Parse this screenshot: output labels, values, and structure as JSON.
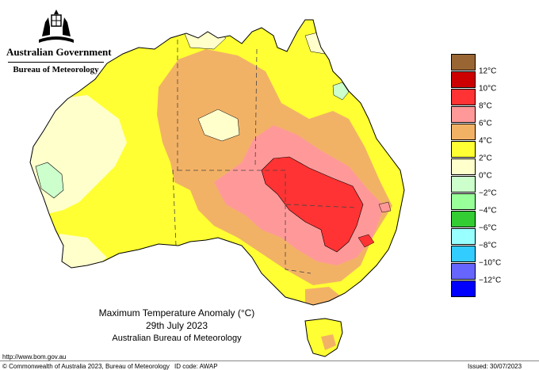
{
  "header": {
    "government": "Australian Government",
    "agency": "Bureau of Meteorology",
    "crest_icon": "coat-of-arms-icon"
  },
  "map": {
    "title": "Maximum Temperature Anomaly (°C)",
    "date": "29th July 2023",
    "source": "Australian Bureau of Meteorology",
    "background_color": "#ffffff",
    "coastline_color": "#000000"
  },
  "legend": {
    "bins": [
      {
        "label": "",
        "color": "#996633"
      },
      {
        "label": "12°C",
        "color": "#cc0000"
      },
      {
        "label": "10°C",
        "color": "#ff3333"
      },
      {
        "label": "8°C",
        "color": "#ff9999"
      },
      {
        "label": "6°C",
        "color": "#f2b266"
      },
      {
        "label": "4°C",
        "color": "#ffff33"
      },
      {
        "label": "2°C",
        "color": "#ffffcc"
      },
      {
        "label": "0°C",
        "color": "#ccffcc"
      },
      {
        "label": "−2°C",
        "color": "#99ff99"
      },
      {
        "label": "−4°C",
        "color": "#33cc33"
      },
      {
        "label": "−6°C",
        "color": "#99ffff"
      },
      {
        "label": "−8°C",
        "color": "#33ccff"
      },
      {
        "label": "−10°C",
        "color": "#6666ff"
      },
      {
        "label": "−12°C",
        "color": "#0000ff"
      }
    ]
  },
  "footer": {
    "url": "http://www.bom.gov.au",
    "copyright": "© Commonwealth of Australia 2023, Bureau of Meteorology",
    "id_code": "ID code: AWAP",
    "issued": "Issued: 30/07/2023"
  }
}
